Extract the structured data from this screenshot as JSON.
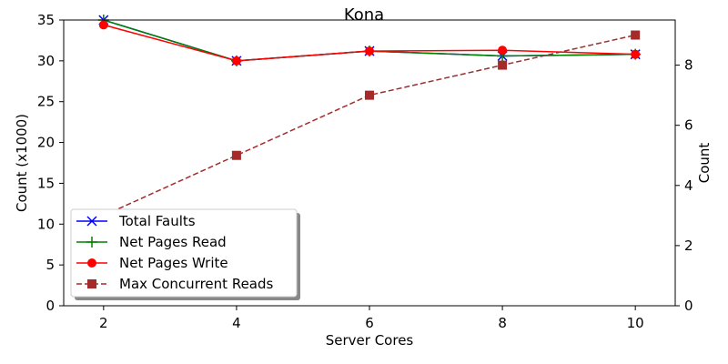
{
  "chart_data": {
    "type": "line",
    "title": "Kona",
    "xlabel": "Server Cores",
    "ylabel_left": "Count (x1000)",
    "ylabel_right": "Count",
    "x": [
      2,
      4,
      6,
      8,
      10
    ],
    "x_ticks": [
      2,
      4,
      6,
      8,
      10
    ],
    "xlim": [
      1.4,
      10.6
    ],
    "ylim_left": [
      0,
      35
    ],
    "yticks_left": [
      0,
      5,
      10,
      15,
      20,
      25,
      30,
      35
    ],
    "ylim_right": [
      0,
      9.5
    ],
    "yticks_right": [
      0,
      2,
      4,
      6,
      8
    ],
    "grid": false,
    "legend_position": "lower-left",
    "series": [
      {
        "name": "Total Faults",
        "axis": "left",
        "color": "#0000ff",
        "marker": "x",
        "linestyle": "solid",
        "values": [
          35.0,
          30.0,
          31.2,
          30.6,
          30.8
        ]
      },
      {
        "name": "Net Pages Read",
        "axis": "left",
        "color": "#008000",
        "marker": "+",
        "linestyle": "solid",
        "values": [
          35.0,
          30.0,
          31.2,
          30.6,
          30.8
        ]
      },
      {
        "name": "Net Pages Write",
        "axis": "left",
        "color": "#ff0000",
        "marker": "o",
        "linestyle": "solid",
        "values": [
          34.4,
          30.0,
          31.2,
          31.3,
          30.8
        ]
      },
      {
        "name": "Max Concurrent Reads",
        "axis": "right",
        "color": "#a52a2a",
        "marker": "s",
        "linestyle": "dashed",
        "values": [
          3,
          5,
          7,
          8,
          9
        ]
      }
    ]
  }
}
